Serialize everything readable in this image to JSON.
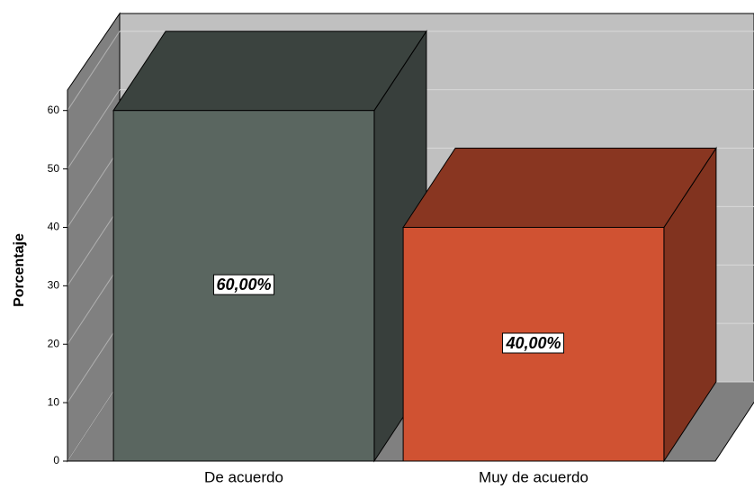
{
  "chart_data": {
    "type": "bar",
    "y_label": "Porcentaje",
    "categories": [
      "De acuerdo",
      "Muy de acuerdo"
    ],
    "values": [
      60,
      40
    ],
    "value_labels": [
      "60,00%",
      "40,00%"
    ],
    "colors": [
      "#5a6660",
      "#d05232"
    ],
    "ylim": [
      0,
      63.5
    ],
    "yticks": [
      0,
      10,
      20,
      30,
      40,
      50,
      60
    ],
    "grid": true
  }
}
